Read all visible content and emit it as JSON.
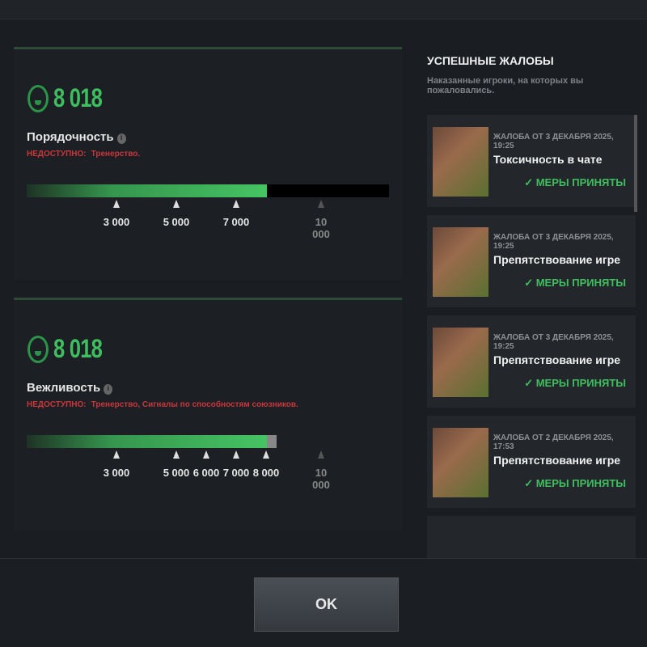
{
  "stats": [
    {
      "score": "8 018",
      "name": "Порядочность",
      "warn_label": "НЕДОСТУПНО:",
      "warn_text": "Тренерство.",
      "value": 8018,
      "bar_max": 12100,
      "ticks": [
        "3 000",
        "5 000",
        "7 000"
      ],
      "ticks_values": [
        3000,
        5000,
        7000
      ],
      "max_tick": "10 000"
    },
    {
      "score": "8 018",
      "name": "Вежливость",
      "warn_label": "НЕДОСТУПНО:",
      "warn_text": "Тренерство, Сигналы по способностям союзников.",
      "value": 8018,
      "bar_max": 8350,
      "ticks": [
        "3 000",
        "5 000",
        "6 000",
        "7 000",
        "8 000"
      ],
      "ticks_values": [
        3000,
        5000,
        6000,
        7000,
        8000
      ],
      "max_tick": "10 000"
    }
  ],
  "reports": {
    "title": "УСПЕШНЫЕ ЖАЛОБЫ",
    "subtitle": "Наказанные игроки, на которых вы пожаловались.",
    "items": [
      {
        "date": "ЖАЛОБА ОТ 3 ДЕКАБРЯ 2025, 19:25",
        "reason": "Токсичность в чате",
        "status": "✓ МЕРЫ ПРИНЯТЫ"
      },
      {
        "date": "ЖАЛОБА ОТ 3 ДЕКАБРЯ 2025, 19:25",
        "reason": "Препятствование игре",
        "status": "✓ МЕРЫ ПРИНЯТЫ"
      },
      {
        "date": "ЖАЛОБА ОТ 3 ДЕКАБРЯ 2025, 19:25",
        "reason": "Препятствование игре",
        "status": "✓ МЕРЫ ПРИНЯТЫ"
      },
      {
        "date": "ЖАЛОБА ОТ 2 ДЕКАБРЯ 2025, 17:53",
        "reason": "Препятствование игре",
        "status": "✓ МЕРЫ ПРИНЯТЫ"
      }
    ]
  },
  "ok_label": "OK",
  "colors": {
    "accent_green": "#3fbe5f",
    "warn_red": "#c8373c"
  }
}
